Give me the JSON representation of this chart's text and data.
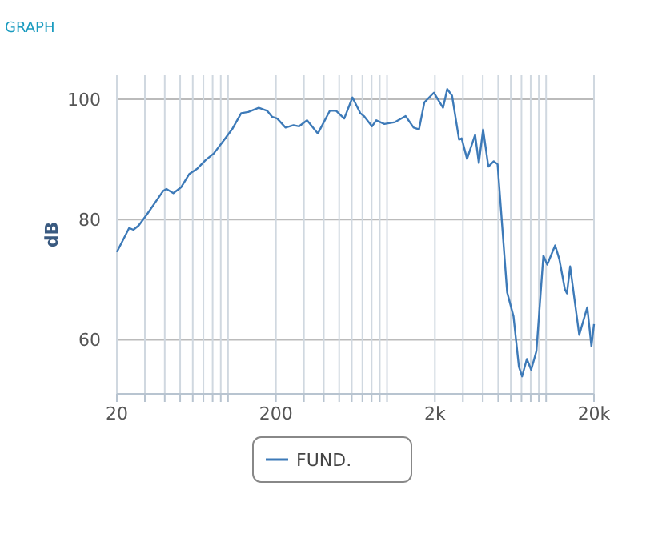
{
  "chart_data": {
    "type": "line",
    "title": "GRAPH",
    "ylabel": "dB",
    "log": "x",
    "grid": true,
    "legend": "bottom",
    "xlim": [
      20,
      20000
    ],
    "ylim": [
      51,
      104
    ],
    "yticks": [
      60,
      80,
      100
    ],
    "xticks": [
      20,
      {
        "value": 30,
        "label": null
      },
      {
        "value": 40,
        "label": null
      },
      {
        "value": 50,
        "label": null
      },
      {
        "value": 60,
        "label": null
      },
      {
        "value": 70,
        "label": null
      },
      {
        "value": 80,
        "label": null
      },
      {
        "value": 90,
        "label": null
      },
      {
        "value": 100,
        "label": null
      },
      200,
      {
        "value": 300,
        "label": null
      },
      {
        "value": 400,
        "label": null
      },
      {
        "value": 500,
        "label": null
      },
      {
        "value": 600,
        "label": null
      },
      {
        "value": 700,
        "label": null
      },
      {
        "value": 800,
        "label": null
      },
      {
        "value": 900,
        "label": null
      },
      {
        "value": 1000,
        "label": null
      },
      {
        "value": 2000,
        "label": "2k"
      },
      {
        "value": 3000,
        "label": null
      },
      {
        "value": 4000,
        "label": null
      },
      {
        "value": 5000,
        "label": null
      },
      {
        "value": 6000,
        "label": null
      },
      {
        "value": 7000,
        "label": null
      },
      {
        "value": 8000,
        "label": null
      },
      {
        "value": 9000,
        "label": null
      },
      {
        "value": 10000,
        "label": null
      },
      {
        "value": 20000,
        "label": "20k"
      }
    ],
    "series": [
      {
        "name": "FUND.",
        "color": "#3d7ab8",
        "x": [
          20,
          23.9,
          25.4,
          27.4,
          30.8,
          39.2,
          41,
          45.3,
          50.8,
          57.1,
          64.2,
          72.3,
          81.4,
          94.9,
          106,
          121,
          134,
          156,
          176,
          189,
          204,
          230,
          258,
          280,
          314,
          367,
          437,
          478,
          538,
          606,
          679,
          716,
          804,
          856,
          962,
          1122,
          1309,
          1469,
          1589,
          1717,
          1972,
          2250,
          2391,
          2563,
          2838,
          2945,
          3185,
          3580,
          3776,
          4018,
          4336,
          4688,
          4955,
          5689,
          6238,
          6745,
          7063,
          7568,
          8054,
          8690,
          9615,
          10162,
          11400,
          12110,
          13120,
          13520,
          14160,
          16150,
          18150,
          19270,
          20000
        ],
        "values": [
          74.6,
          78.6,
          78.3,
          79,
          80.8,
          84.8,
          85.1,
          84.4,
          85.4,
          87.6,
          88.5,
          89.9,
          91,
          93.3,
          95,
          97.7,
          97.9,
          98.6,
          98.1,
          97.1,
          96.8,
          95.3,
          95.7,
          95.5,
          96.5,
          94.3,
          98.1,
          98.1,
          96.8,
          100.3,
          97.7,
          97.2,
          95.5,
          96.5,
          95.9,
          96.2,
          97.2,
          95.3,
          95,
          99.5,
          101.1,
          98.6,
          101.7,
          100.6,
          93.3,
          93.5,
          90.1,
          94.1,
          89.4,
          95,
          88.8,
          89.7,
          89.2,
          67.9,
          63.9,
          55.5,
          53.9,
          56.8,
          55,
          58.1,
          74,
          72.5,
          75.7,
          73.4,
          68.4,
          67.7,
          72.2,
          60.8,
          65.4,
          58.9,
          62.6
        ]
      }
    ]
  }
}
